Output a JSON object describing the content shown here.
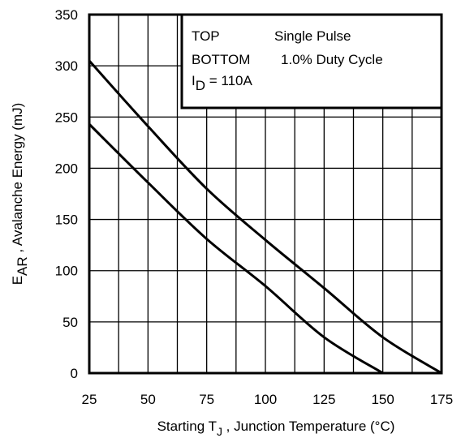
{
  "chart_data": {
    "type": "line",
    "xlabel": {
      "prefix": "Starting T",
      "sub": "J",
      "suffix": " , Junction Temperature (°C)"
    },
    "ylabel": {
      "prefix": "E",
      "sub": "AR",
      "suffix": " , Avalanche Energy (mJ)"
    },
    "xlim": [
      25,
      175
    ],
    "ylim": [
      0,
      350
    ],
    "xticks": [
      25,
      50,
      75,
      100,
      125,
      150,
      175
    ],
    "yticks": [
      0,
      50,
      100,
      150,
      200,
      250,
      300,
      350
    ],
    "grid": true,
    "legend_position": "top-right",
    "legend": {
      "row1_key": "TOP",
      "row1_value": "Single Pulse",
      "row2_key": "BOTTOM",
      "row2_value": "1.0% Duty Cycle",
      "row3_prefix": "I",
      "row3_sub": "D",
      "row3_suffix": " = 110A"
    },
    "series": [
      {
        "name": "Single Pulse",
        "x": [
          25,
          50,
          75,
          100,
          125,
          150,
          175
        ],
        "y": [
          305,
          241,
          180,
          130,
          83,
          35,
          0
        ]
      },
      {
        "name": "1.0% Duty Cycle",
        "x": [
          25,
          50,
          75,
          100,
          125,
          150
        ],
        "y": [
          243,
          186,
          131,
          85,
          35,
          0
        ]
      }
    ]
  }
}
